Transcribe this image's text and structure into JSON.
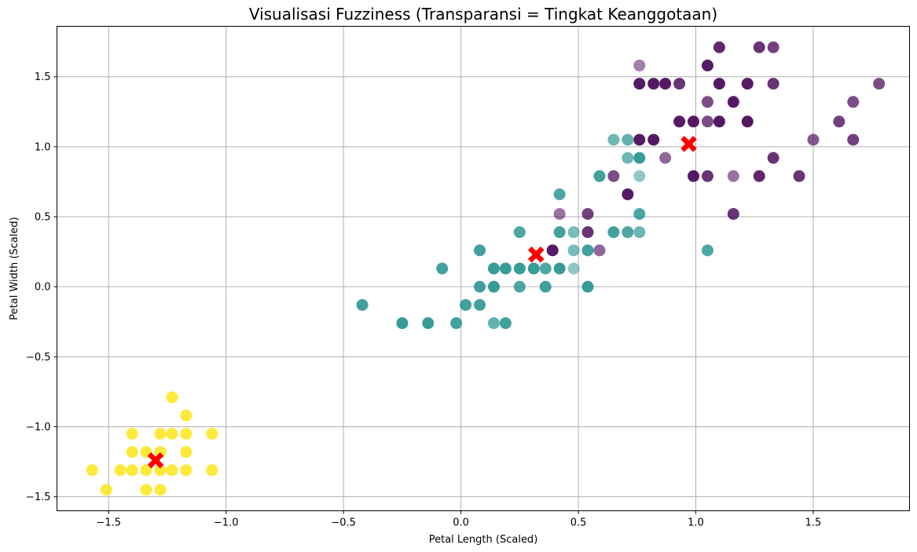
{
  "chart_data": {
    "type": "scatter",
    "title": "Visualisasi Fuzziness (Transparansi = Tingkat Keanggotaan)",
    "xlabel": "Petal Length (Scaled)",
    "ylabel": "Petal Width (Scaled)",
    "xlim": [
      -1.72,
      1.91
    ],
    "ylim": [
      -1.6,
      1.86
    ],
    "xticks": [
      -1.5,
      -1.0,
      -0.5,
      0.0,
      0.5,
      1.0,
      1.5
    ],
    "yticks": [
      -1.5,
      -1.0,
      -0.5,
      0.0,
      0.5,
      1.0,
      1.5
    ],
    "xtick_labels": [
      "−1.5",
      "−1.0",
      "−0.5",
      "0.0",
      "0.5",
      "1.0",
      "1.5"
    ],
    "ytick_labels": [
      "−1.5",
      "−1.0",
      "−0.5",
      "0.0",
      "0.5",
      "1.0",
      "1.5"
    ],
    "grid": true,
    "cluster_colors": {
      "0": "#fde725",
      "1": "#21918c",
      "2": "#440154"
    },
    "center_color": "#ff0000",
    "series": [
      {
        "cluster": 0,
        "points": [
          [
            -1.57,
            -1.31,
            0.9
          ],
          [
            -1.51,
            -1.45,
            0.9
          ],
          [
            -1.45,
            -1.31,
            0.9
          ],
          [
            -1.4,
            -1.31,
            0.9
          ],
          [
            -1.4,
            -1.18,
            0.9
          ],
          [
            -1.4,
            -1.05,
            0.9
          ],
          [
            -1.34,
            -1.45,
            0.9
          ],
          [
            -1.34,
            -1.31,
            0.9
          ],
          [
            -1.34,
            -1.18,
            0.9
          ],
          [
            -1.28,
            -1.45,
            0.9
          ],
          [
            -1.28,
            -1.31,
            0.9
          ],
          [
            -1.28,
            -1.18,
            0.9
          ],
          [
            -1.28,
            -1.05,
            0.9
          ],
          [
            -1.23,
            -1.31,
            0.9
          ],
          [
            -1.23,
            -1.05,
            0.9
          ],
          [
            -1.23,
            -0.79,
            0.9
          ],
          [
            -1.17,
            -1.31,
            0.9
          ],
          [
            -1.17,
            -1.18,
            0.9
          ],
          [
            -1.17,
            -1.05,
            0.9
          ],
          [
            -1.17,
            -0.92,
            0.9
          ],
          [
            -1.06,
            -1.31,
            0.9
          ],
          [
            -1.06,
            -1.05,
            0.9
          ]
        ]
      },
      {
        "cluster": 1,
        "points": [
          [
            -0.42,
            -0.13,
            0.85
          ],
          [
            -0.25,
            -0.26,
            0.9
          ],
          [
            -0.14,
            -0.26,
            0.9
          ],
          [
            -0.08,
            0.13,
            0.85
          ],
          [
            -0.02,
            -0.26,
            0.85
          ],
          [
            0.02,
            -0.13,
            0.85
          ],
          [
            0.08,
            -0.13,
            0.85
          ],
          [
            0.08,
            0.0,
            0.85
          ],
          [
            0.08,
            0.26,
            0.85
          ],
          [
            0.14,
            0.0,
            0.9
          ],
          [
            0.14,
            0.13,
            0.9
          ],
          [
            0.14,
            -0.26,
            0.7
          ],
          [
            0.19,
            0.13,
            0.9
          ],
          [
            0.19,
            -0.26,
            0.85
          ],
          [
            0.25,
            0.0,
            0.8
          ],
          [
            0.25,
            0.13,
            0.9
          ],
          [
            0.25,
            0.39,
            0.8
          ],
          [
            0.31,
            0.13,
            0.9
          ],
          [
            0.36,
            0.0,
            0.85
          ],
          [
            0.36,
            0.13,
            0.8
          ],
          [
            0.42,
            0.13,
            0.9
          ],
          [
            0.42,
            0.39,
            0.85
          ],
          [
            0.42,
            0.66,
            0.8
          ],
          [
            0.48,
            0.13,
            0.5
          ],
          [
            0.48,
            0.26,
            0.6
          ],
          [
            0.48,
            0.39,
            0.6
          ],
          [
            0.54,
            0.0,
            0.9
          ],
          [
            0.54,
            0.26,
            0.85
          ],
          [
            0.59,
            0.79,
            0.85
          ],
          [
            0.65,
            0.39,
            0.85
          ],
          [
            0.65,
            1.05,
            0.65
          ],
          [
            0.71,
            0.39,
            0.8
          ],
          [
            0.71,
            0.92,
            0.65
          ],
          [
            0.71,
            1.05,
            0.7
          ],
          [
            0.76,
            0.39,
            0.65
          ],
          [
            0.76,
            0.52,
            0.8
          ],
          [
            0.76,
            0.79,
            0.5
          ],
          [
            0.76,
            0.92,
            0.9
          ],
          [
            1.05,
            0.26,
            0.8
          ]
        ]
      },
      {
        "cluster": 2,
        "points": [
          [
            0.39,
            0.26,
            0.9
          ],
          [
            0.42,
            0.52,
            0.55
          ],
          [
            0.54,
            0.39,
            0.8
          ],
          [
            0.54,
            0.52,
            0.75
          ],
          [
            0.59,
            0.26,
            0.6
          ],
          [
            0.65,
            0.79,
            0.7
          ],
          [
            0.71,
            0.66,
            0.9
          ],
          [
            0.76,
            1.05,
            0.9
          ],
          [
            0.76,
            1.45,
            0.9
          ],
          [
            0.76,
            1.58,
            0.5
          ],
          [
            0.82,
            1.05,
            0.9
          ],
          [
            0.82,
            1.45,
            0.9
          ],
          [
            0.87,
            0.92,
            0.6
          ],
          [
            0.87,
            1.45,
            0.9
          ],
          [
            0.93,
            1.18,
            0.9
          ],
          [
            0.93,
            1.45,
            0.8
          ],
          [
            0.99,
            0.79,
            0.9
          ],
          [
            0.99,
            1.18,
            0.9
          ],
          [
            1.05,
            0.79,
            0.8
          ],
          [
            1.05,
            1.18,
            0.7
          ],
          [
            1.05,
            1.32,
            0.7
          ],
          [
            1.05,
            1.58,
            0.9
          ],
          [
            1.1,
            1.18,
            0.9
          ],
          [
            1.1,
            1.45,
            0.9
          ],
          [
            1.1,
            1.71,
            0.85
          ],
          [
            1.16,
            0.52,
            0.8
          ],
          [
            1.16,
            0.79,
            0.55
          ],
          [
            1.16,
            1.32,
            0.9
          ],
          [
            1.22,
            1.18,
            0.9
          ],
          [
            1.22,
            1.45,
            0.9
          ],
          [
            1.27,
            0.79,
            0.85
          ],
          [
            1.27,
            1.71,
            0.8
          ],
          [
            1.33,
            0.92,
            0.8
          ],
          [
            1.33,
            1.45,
            0.8
          ],
          [
            1.33,
            1.71,
            0.75
          ],
          [
            1.44,
            0.79,
            0.8
          ],
          [
            1.5,
            1.05,
            0.65
          ],
          [
            1.61,
            1.18,
            0.75
          ],
          [
            1.67,
            1.05,
            0.75
          ],
          [
            1.67,
            1.32,
            0.7
          ],
          [
            1.78,
            1.45,
            0.7
          ]
        ]
      }
    ],
    "centers": [
      [
        -1.3,
        -1.24
      ],
      [
        0.32,
        0.23
      ],
      [
        0.97,
        1.02
      ]
    ]
  }
}
